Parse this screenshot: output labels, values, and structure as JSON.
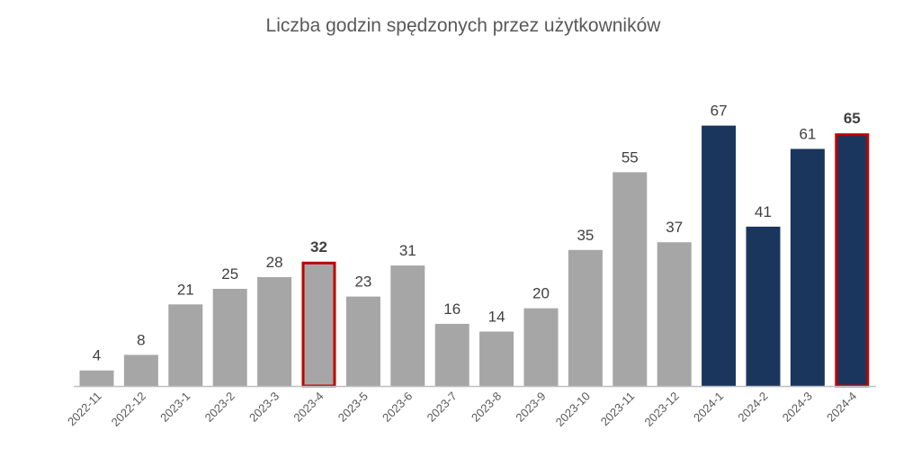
{
  "chart_data": {
    "type": "bar",
    "title": "Liczba godzin spędzonych przez użytkowników",
    "xlabel": "",
    "ylabel": "",
    "ylim": [
      0,
      80
    ],
    "grid": false,
    "legend": "none",
    "categories": [
      "2022-11",
      "2022-12",
      "2023-1",
      "2023-2",
      "2023-3",
      "2023-4",
      "2023-5",
      "2023-6",
      "2023-7",
      "2023-8",
      "2023-9",
      "2023-10",
      "2023-11",
      "2023-12",
      "2024-1",
      "2024-2",
      "2024-3",
      "2024-4"
    ],
    "values": [
      4,
      8,
      21,
      25,
      28,
      32,
      23,
      31,
      16,
      14,
      20,
      35,
      55,
      37,
      67,
      41,
      61,
      65
    ],
    "highlighted": [
      "2023-4",
      "2024-4"
    ],
    "colors": {
      "past_year": "#a6a6a6",
      "current_year": "#1a365d",
      "highlight_outline": "#c00000",
      "axis": "#bfbfbf"
    },
    "current_year_categories": [
      "2024-1",
      "2024-2",
      "2024-3",
      "2024-4"
    ]
  }
}
